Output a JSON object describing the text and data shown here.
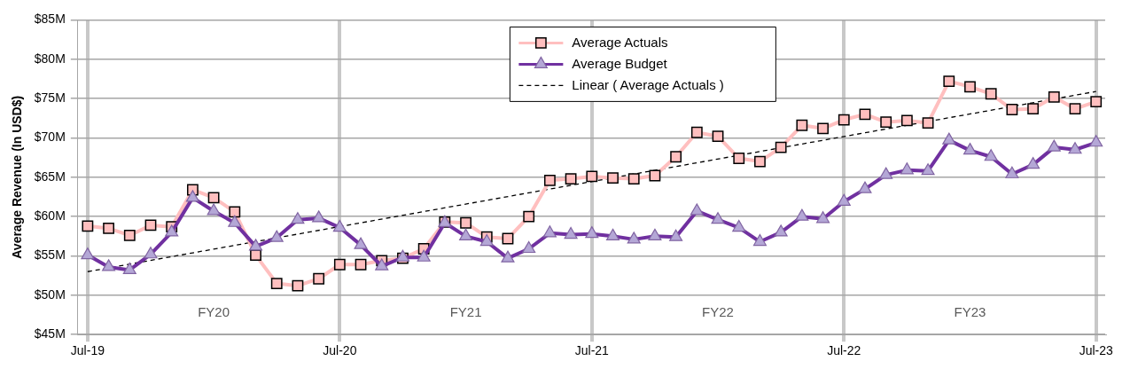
{
  "chart_data": {
    "type": "line",
    "ylabel": "Average Revenue (In USD$)",
    "x": [
      "2019-07",
      "2019-08",
      "2019-09",
      "2019-10",
      "2019-11",
      "2019-12",
      "2020-01",
      "2020-02",
      "2020-03",
      "2020-04",
      "2020-05",
      "2020-06",
      "2020-07",
      "2020-08",
      "2020-09",
      "2020-10",
      "2020-11",
      "2020-12",
      "2021-01",
      "2021-02",
      "2021-03",
      "2021-04",
      "2021-05",
      "2021-06",
      "2021-07",
      "2021-08",
      "2021-09",
      "2021-10",
      "2021-11",
      "2021-12",
      "2022-01",
      "2022-02",
      "2022-03",
      "2022-04",
      "2022-05",
      "2022-06",
      "2022-07",
      "2022-08",
      "2022-09",
      "2022-10",
      "2022-11",
      "2022-12",
      "2023-01",
      "2023-02",
      "2023-03",
      "2023-04",
      "2023-05",
      "2023-06",
      "2023-07"
    ],
    "series": [
      {
        "name": "Average Actuals",
        "color": "#ffbfbf",
        "marker": "square",
        "values": [
          58.8,
          58.5,
          57.6,
          58.9,
          58.7,
          63.4,
          62.4,
          60.6,
          55.1,
          51.5,
          51.2,
          52.1,
          53.9,
          53.9,
          54.4,
          54.7,
          55.9,
          59.3,
          59.2,
          57.4,
          57.2,
          60.0,
          64.6,
          64.8,
          65.1,
          64.9,
          64.8,
          65.2,
          67.6,
          70.7,
          70.2,
          67.4,
          67.0,
          68.8,
          71.6,
          71.2,
          72.3,
          73.0,
          72.0,
          72.2,
          71.9,
          77.2,
          76.5,
          75.6,
          73.6,
          73.7,
          75.2,
          73.7,
          74.6
        ]
      },
      {
        "name": "Average Budget",
        "color": "#7030a0",
        "marker": "triangle",
        "values": [
          55.1,
          53.6,
          53.2,
          55.2,
          58.0,
          62.4,
          60.7,
          59.2,
          56.2,
          57.3,
          59.6,
          59.8,
          58.6,
          56.4,
          53.7,
          54.8,
          54.8,
          59.2,
          57.5,
          56.8,
          54.7,
          55.9,
          57.9,
          57.7,
          57.8,
          57.5,
          57.1,
          57.5,
          57.4,
          60.7,
          59.6,
          58.6,
          56.8,
          58.0,
          60.0,
          59.7,
          61.9,
          63.5,
          65.3,
          65.9,
          65.8,
          69.7,
          68.4,
          67.6,
          65.4,
          66.6,
          68.8,
          68.5,
          69.4
        ]
      },
      {
        "name": "Linear ( Average Actuals )",
        "type": "line",
        "color": "#000000",
        "marker": "none",
        "line_style": "dashed",
        "x": [
          "2019-07",
          "2023-07"
        ],
        "values": [
          53.0,
          75.9
        ]
      }
    ],
    "xlim": [
      "2019-06-17",
      "2023-07-14"
    ],
    "xticks": [
      {
        "value": "2019-07",
        "label": "Jul-19"
      },
      {
        "value": "2020-07",
        "label": "Jul-20"
      },
      {
        "value": "2021-07",
        "label": "Jul-21"
      },
      {
        "value": "2022-07",
        "label": "Jul-22"
      },
      {
        "value": "2023-07",
        "label": "Jul-23"
      }
    ],
    "ylim": [
      45,
      85
    ],
    "yticks": [
      {
        "value": 45,
        "label": "$45M"
      },
      {
        "value": 50,
        "label": "$50M"
      },
      {
        "value": 55,
        "label": "$55M"
      },
      {
        "value": 60,
        "label": "$60M"
      },
      {
        "value": 65,
        "label": "$65M"
      },
      {
        "value": 70,
        "label": "$70M"
      },
      {
        "value": 75,
        "label": "$75M"
      },
      {
        "value": 80,
        "label": "$80M"
      },
      {
        "value": 85,
        "label": "$85M"
      }
    ],
    "annotations": [
      "FY20",
      "FY21",
      "FY22",
      "FY23"
    ],
    "grid": true,
    "legend": "top"
  }
}
